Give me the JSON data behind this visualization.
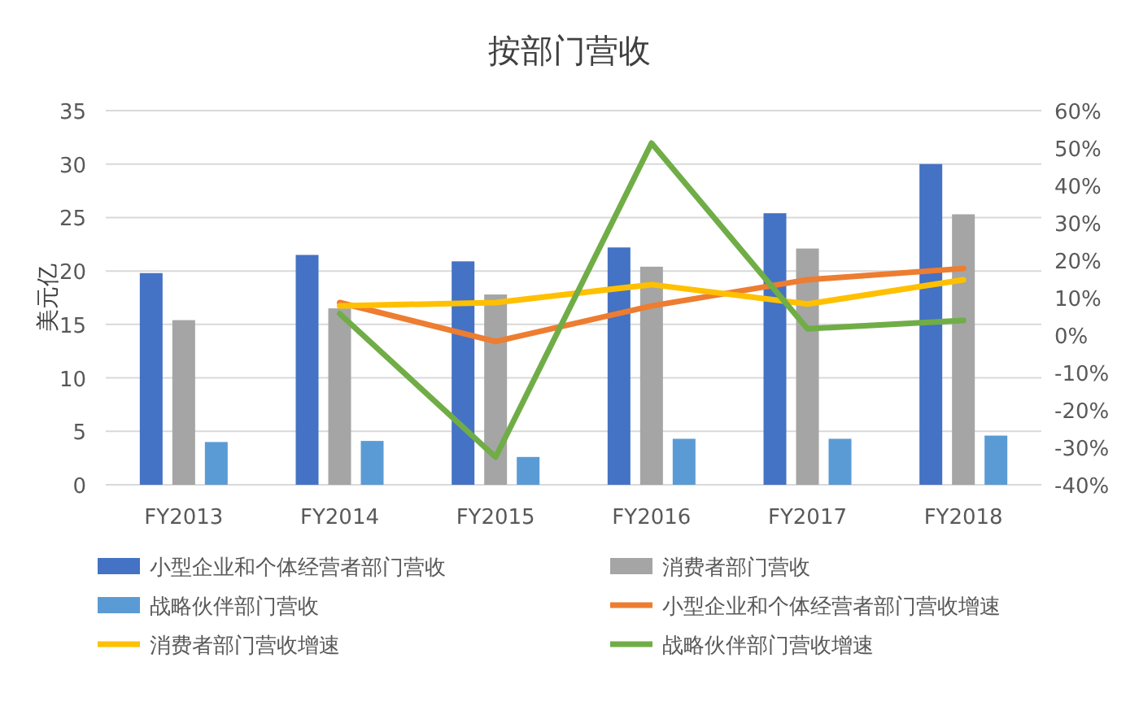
{
  "chart_data": {
    "type": "bar",
    "title": "按部门营收",
    "ylabel": "美元亿",
    "categories": [
      "FY2013",
      "FY2014",
      "FY2015",
      "FY2016",
      "FY2017",
      "FY2018"
    ],
    "series": [
      {
        "name": "小型企业和个体经营者部门营收",
        "color": "#4472c4",
        "values": [
          19.8,
          21.5,
          20.9,
          22.2,
          25.4,
          30.0
        ]
      },
      {
        "name": "消费者部门营收",
        "color": "#a5a5a5",
        "values": [
          15.4,
          16.5,
          17.8,
          20.4,
          22.1,
          25.3
        ]
      },
      {
        "name": "战略伙伴部门营收",
        "color": "#5b9bd5",
        "values": [
          4.0,
          4.1,
          2.6,
          4.3,
          4.3,
          4.6
        ]
      },
      {
        "name": "小型企业和个体经营者部门营收增速",
        "color": "#ed7d31",
        "type": "line",
        "axis": "y2",
        "values": [
          null,
          8.7,
          -1.7,
          7.8,
          14.8,
          17.8
        ]
      },
      {
        "name": "消费者部门营收增速",
        "color": "#ffc000",
        "type": "line",
        "axis": "y2",
        "values": [
          null,
          7.8,
          8.7,
          13.5,
          8.3,
          14.8
        ]
      },
      {
        "name": "战略伙伴部门营收增速",
        "color": "#70ad47",
        "type": "line",
        "axis": "y2",
        "values": [
          null,
          5.7,
          -32.6,
          51.3,
          1.7,
          3.9
        ]
      }
    ],
    "ylim": [
      0,
      35
    ],
    "yticks": [
      0,
      5,
      10,
      15,
      20,
      25,
      30,
      35
    ],
    "y2lim": [
      -40,
      60
    ],
    "y2ticks": [
      {
        "value": -40,
        "label": "-40%"
      },
      {
        "value": -30,
        "label": "-30%"
      },
      {
        "value": -20,
        "label": "-20%"
      },
      {
        "value": -10,
        "label": "-10%"
      },
      {
        "value": 0,
        "label": "0%"
      },
      {
        "value": 10,
        "label": "10%"
      },
      {
        "value": 20,
        "label": "20%"
      },
      {
        "value": 30,
        "label": "30%"
      },
      {
        "value": 40,
        "label": "40%"
      },
      {
        "value": 50,
        "label": "50%"
      },
      {
        "value": 60,
        "label": "60%"
      }
    ],
    "grid": "y",
    "legend": "bottom",
    "marker": "none",
    "line_style": "solid"
  }
}
